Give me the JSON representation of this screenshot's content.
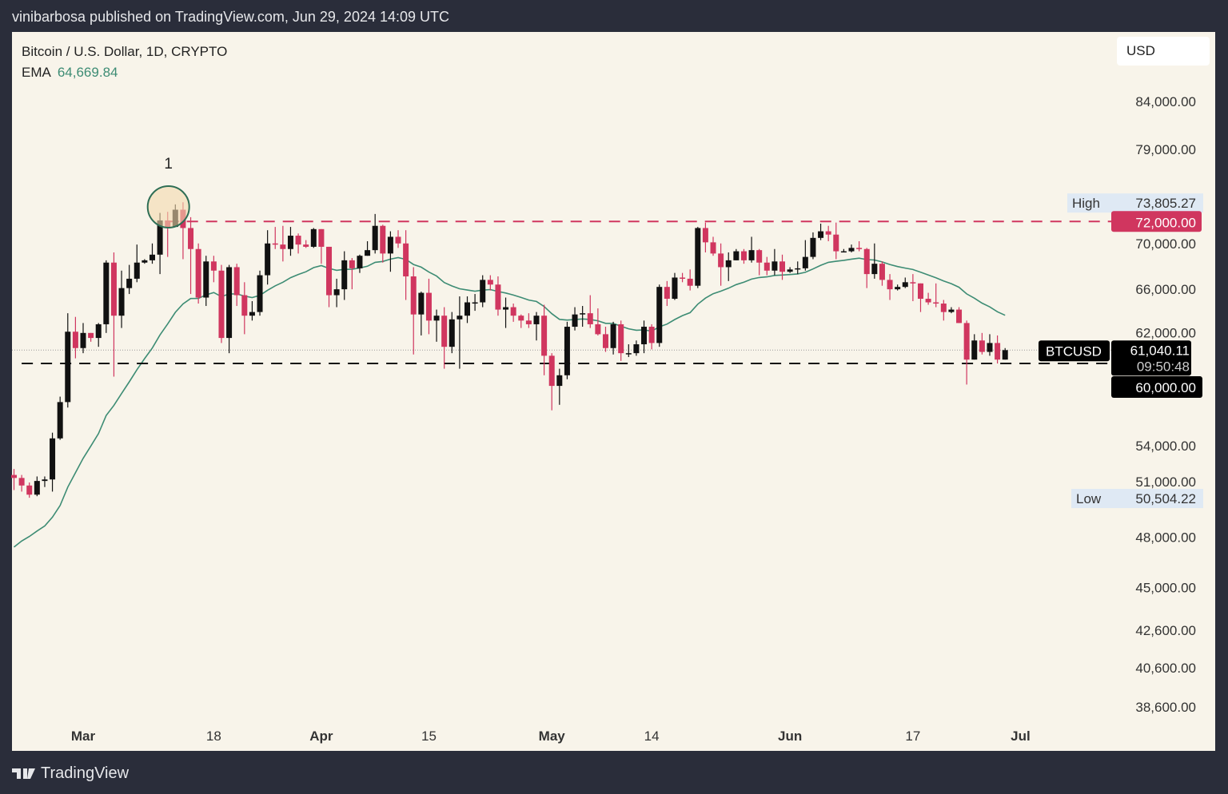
{
  "header": {
    "published": "vinibarbosa published on TradingView.com, Jun 29, 2024 14:09 UTC"
  },
  "legend": {
    "symbol": "Bitcoin / U.S. Dollar, 1D, CRYPTO",
    "ema_label": "EMA",
    "ema_value": "64,669.84"
  },
  "currency_button": "USD",
  "footer": {
    "brand": "TradingView"
  },
  "colors": {
    "up": "#111111",
    "down": "#d0365f",
    "ema": "#3d8c74",
    "resistance": "#d0365f",
    "support": "#111111",
    "background": "#f8f4ea"
  },
  "chart_data": {
    "type": "candlestick",
    "title": "Bitcoin / U.S. Dollar, 1D, CRYPTO",
    "price_unit": "USD thousands",
    "y_scale": "log",
    "ylim": [
      38.6,
      84.0
    ],
    "y_ticks": [
      "84,000.00",
      "79,000.00",
      "70,000.00",
      "66,000.00",
      "62,000.00",
      "54,000.00",
      "51,000.00",
      "48,000.00",
      "45,000.00",
      "42,600.00",
      "40,600.00",
      "38,600.00"
    ],
    "y_tick_values": [
      84,
      79,
      70,
      66,
      62,
      54,
      51,
      48,
      45,
      42.6,
      40.6,
      38.6
    ],
    "x_ticks": [
      {
        "label": "Mar",
        "day": 9,
        "bold": true
      },
      {
        "label": "18",
        "day": 26
      },
      {
        "label": "Apr",
        "day": 40,
        "bold": true
      },
      {
        "label": "15",
        "day": 54
      },
      {
        "label": "May",
        "day": 70,
        "bold": true
      },
      {
        "label": "14",
        "day": 83
      },
      {
        "label": "Jun",
        "day": 101,
        "bold": true
      },
      {
        "label": "17",
        "day": 117
      },
      {
        "label": "Jul",
        "day": 131,
        "bold": true
      }
    ],
    "candles_ohlc": [
      [
        52.0,
        52.4,
        51.0,
        51.8
      ],
      [
        51.8,
        52.0,
        50.9,
        51.3
      ],
      [
        51.3,
        51.5,
        50.5,
        50.7
      ],
      [
        50.7,
        51.9,
        50.6,
        51.6
      ],
      [
        51.6,
        51.9,
        51.2,
        51.7
      ],
      [
        51.7,
        54.9,
        50.9,
        54.5
      ],
      [
        54.5,
        57.5,
        54.4,
        57.1
      ],
      [
        57.1,
        64.0,
        56.7,
        62.5
      ],
      [
        62.5,
        63.7,
        60.4,
        61.2
      ],
      [
        61.2,
        63.2,
        60.8,
        62.4
      ],
      [
        62.4,
        62.4,
        61.7,
        62.0
      ],
      [
        62.0,
        63.2,
        61.3,
        63.1
      ],
      [
        63.1,
        68.5,
        62.4,
        68.3
      ],
      [
        68.3,
        69.2,
        59.0,
        63.8
      ],
      [
        63.8,
        67.6,
        62.8,
        66.1
      ],
      [
        66.1,
        68.1,
        65.6,
        66.9
      ],
      [
        66.9,
        69.9,
        66.6,
        68.3
      ],
      [
        68.3,
        68.6,
        68.2,
        68.5
      ],
      [
        68.5,
        70.0,
        68.2,
        69.0
      ],
      [
        69.0,
        72.8,
        67.3,
        72.1
      ],
      [
        72.1,
        72.9,
        68.8,
        71.5
      ],
      [
        71.5,
        73.6,
        71.5,
        73.1
      ],
      [
        73.1,
        73.8,
        68.6,
        71.4
      ],
      [
        71.4,
        72.4,
        65.6,
        69.5
      ],
      [
        69.5,
        70.0,
        64.8,
        65.3
      ],
      [
        65.3,
        68.9,
        64.6,
        68.4
      ],
      [
        68.4,
        68.9,
        66.6,
        67.6
      ],
      [
        67.6,
        68.1,
        61.6,
        62.0
      ],
      [
        62.0,
        68.1,
        60.8,
        67.9
      ],
      [
        67.9,
        68.2,
        64.6,
        65.5
      ],
      [
        65.5,
        66.6,
        62.3,
        63.8
      ],
      [
        63.8,
        65.0,
        63.4,
        64.1
      ],
      [
        64.1,
        67.6,
        63.8,
        67.2
      ],
      [
        67.2,
        71.2,
        66.4,
        70.0
      ],
      [
        70.0,
        71.5,
        69.5,
        69.9
      ],
      [
        69.9,
        71.6,
        68.4,
        69.5
      ],
      [
        69.5,
        71.5,
        68.9,
        70.7
      ],
      [
        70.7,
        70.9,
        69.1,
        69.9
      ],
      [
        69.9,
        70.3,
        69.6,
        69.7
      ],
      [
        69.7,
        71.4,
        69.6,
        71.3
      ],
      [
        71.3,
        71.3,
        68.2,
        69.7
      ],
      [
        69.7,
        69.7,
        64.5,
        65.5
      ],
      [
        65.5,
        66.9,
        64.5,
        66.0
      ],
      [
        66.0,
        69.3,
        65.1,
        68.5
      ],
      [
        68.5,
        68.7,
        66.0,
        67.8
      ],
      [
        67.8,
        69.0,
        67.4,
        68.9
      ],
      [
        68.9,
        70.2,
        68.9,
        69.4
      ],
      [
        69.4,
        72.7,
        69.1,
        71.6
      ],
      [
        71.6,
        71.7,
        68.3,
        69.1
      ],
      [
        69.1,
        71.1,
        67.5,
        70.6
      ],
      [
        70.6,
        71.2,
        69.6,
        70.0
      ],
      [
        70.0,
        71.2,
        65.1,
        67.1
      ],
      [
        67.1,
        67.9,
        60.7,
        63.9
      ],
      [
        63.9,
        65.8,
        62.2,
        65.7
      ],
      [
        65.7,
        66.9,
        62.3,
        63.4
      ],
      [
        63.4,
        64.3,
        61.7,
        63.8
      ],
      [
        63.8,
        64.5,
        59.6,
        61.3
      ],
      [
        61.3,
        64.1,
        60.8,
        63.5
      ],
      [
        63.5,
        65.4,
        59.6,
        63.8
      ],
      [
        63.8,
        65.4,
        63.2,
        64.9
      ],
      [
        64.9,
        65.6,
        64.2,
        64.9
      ],
      [
        64.9,
        67.2,
        64.5,
        66.8
      ],
      [
        66.8,
        67.2,
        65.9,
        66.4
      ],
      [
        66.4,
        67.1,
        63.8,
        64.3
      ],
      [
        64.3,
        65.3,
        62.8,
        64.5
      ],
      [
        64.5,
        64.8,
        63.3,
        63.8
      ],
      [
        63.8,
        63.9,
        62.8,
        63.4
      ],
      [
        63.4,
        64.0,
        62.8,
        63.1
      ],
      [
        63.1,
        64.1,
        61.8,
        63.8
      ],
      [
        63.8,
        64.7,
        59.1,
        60.6
      ],
      [
        60.6,
        60.8,
        56.5,
        58.3
      ],
      [
        58.3,
        59.6,
        56.9,
        59.1
      ],
      [
        59.1,
        63.3,
        58.8,
        62.9
      ],
      [
        62.9,
        64.5,
        62.6,
        63.9
      ],
      [
        63.9,
        64.6,
        62.9,
        64.0
      ],
      [
        64.0,
        65.5,
        62.8,
        63.1
      ],
      [
        63.1,
        64.4,
        62.2,
        62.3
      ],
      [
        62.3,
        62.9,
        60.9,
        61.2
      ],
      [
        61.2,
        63.3,
        60.7,
        63.1
      ],
      [
        63.1,
        63.4,
        60.2,
        60.8
      ],
      [
        60.8,
        61.5,
        60.5,
        60.8
      ],
      [
        60.8,
        61.8,
        60.6,
        61.5
      ],
      [
        61.5,
        63.4,
        60.8,
        62.9
      ],
      [
        62.9,
        63.1,
        61.1,
        61.6
      ],
      [
        61.6,
        66.4,
        61.3,
        66.2
      ],
      [
        66.2,
        66.7,
        64.6,
        65.2
      ],
      [
        65.2,
        67.4,
        65.1,
        67.0
      ],
      [
        67.0,
        67.4,
        66.6,
        66.9
      ],
      [
        66.9,
        67.7,
        65.9,
        66.3
      ],
      [
        66.3,
        71.5,
        66.1,
        71.4
      ],
      [
        71.4,
        71.9,
        69.2,
        70.1
      ],
      [
        70.1,
        70.6,
        68.9,
        69.1
      ],
      [
        69.1,
        70.0,
        66.3,
        67.9
      ],
      [
        67.9,
        69.2,
        66.7,
        68.5
      ],
      [
        68.5,
        69.5,
        68.5,
        69.3
      ],
      [
        69.3,
        69.5,
        68.2,
        68.5
      ],
      [
        68.5,
        70.6,
        68.3,
        69.4
      ],
      [
        69.4,
        69.5,
        67.2,
        68.3
      ],
      [
        68.3,
        68.8,
        67.2,
        67.6
      ],
      [
        67.6,
        69.5,
        67.2,
        68.4
      ],
      [
        68.4,
        69.0,
        66.8,
        67.5
      ],
      [
        67.5,
        67.9,
        67.4,
        67.7
      ],
      [
        67.7,
        68.4,
        67.3,
        67.8
      ],
      [
        67.8,
        70.3,
        67.6,
        68.8
      ],
      [
        68.8,
        71.0,
        68.6,
        70.5
      ],
      [
        70.5,
        71.8,
        70.3,
        71.1
      ],
      [
        71.1,
        71.6,
        70.2,
        70.8
      ],
      [
        70.8,
        71.9,
        68.6,
        69.3
      ],
      [
        69.3,
        69.5,
        69.2,
        69.3
      ],
      [
        69.3,
        69.9,
        69.2,
        69.6
      ],
      [
        69.6,
        70.2,
        69.3,
        69.5
      ],
      [
        69.5,
        69.6,
        66.1,
        67.3
      ],
      [
        67.3,
        70.0,
        66.9,
        68.2
      ],
      [
        68.2,
        68.4,
        66.3,
        66.8
      ],
      [
        66.8,
        67.3,
        65.1,
        66.0
      ],
      [
        66.0,
        66.4,
        65.9,
        66.2
      ],
      [
        66.2,
        67.0,
        66.1,
        66.6
      ],
      [
        66.6,
        67.3,
        65.0,
        66.5
      ],
      [
        66.5,
        66.5,
        64.1,
        65.2
      ],
      [
        65.2,
        65.7,
        64.7,
        64.9
      ],
      [
        64.9,
        66.5,
        64.5,
        64.8
      ],
      [
        64.8,
        65.1,
        63.4,
        64.1
      ],
      [
        64.1,
        64.5,
        64.0,
        64.3
      ],
      [
        64.3,
        64.5,
        63.2,
        63.2
      ],
      [
        63.2,
        63.4,
        58.4,
        60.3
      ],
      [
        60.3,
        62.3,
        60.3,
        61.8
      ],
      [
        61.8,
        62.4,
        60.7,
        60.9
      ],
      [
        60.9,
        62.3,
        60.6,
        61.6
      ],
      [
        61.6,
        62.2,
        60.0,
        60.3
      ],
      [
        60.3,
        61.2,
        60.3,
        61.04
      ]
    ],
    "ema": {
      "length": 20,
      "start_value": 47.4
    },
    "horizontal_lines": [
      {
        "name": "resistance",
        "price": 72.0,
        "label": "72,000.00",
        "from_day": 20
      },
      {
        "name": "support",
        "price": 60.0,
        "label": "60,000.00",
        "from_day": 1
      }
    ],
    "annotations": [
      {
        "text": "1",
        "day": 20,
        "price": 72.9
      }
    ],
    "high": {
      "label": "High",
      "value": "73,805.27",
      "price": 73.805
    },
    "low": {
      "label": "Low",
      "value": "50,504.22",
      "price": 50.504
    },
    "last": {
      "symbol": "BTCUSD",
      "value": "61,040.11",
      "countdown": "09:50:48",
      "price": 61.04
    }
  }
}
